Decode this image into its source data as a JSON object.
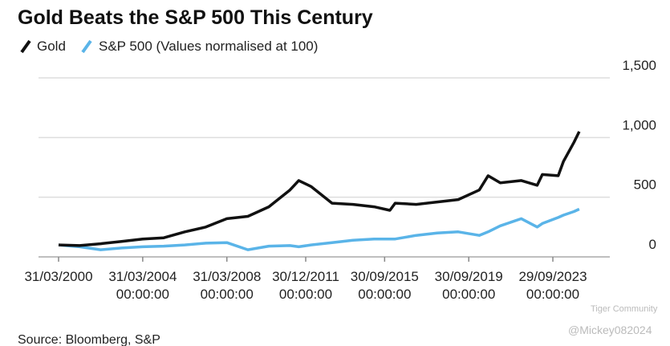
{
  "chart_data": {
    "type": "line",
    "title": "Gold Beats the S&P 500 This Century",
    "x": [
      "31/03/2000",
      "31/03/2001",
      "31/03/2002",
      "31/03/2003",
      "31/03/2004",
      "31/03/2005",
      "31/03/2006",
      "31/03/2007",
      "31/03/2008",
      "31/03/2009",
      "31/03/2010",
      "31/03/2011",
      "31/08/2011",
      "31/03/2012",
      "31/03/2013",
      "31/03/2014",
      "31/03/2015",
      "31/12/2015",
      "31/03/2016",
      "31/03/2017",
      "31/03/2018",
      "31/03/2019",
      "31/03/2020",
      "31/08/2020",
      "31/03/2021",
      "31/03/2022",
      "31/12/2022",
      "31/03/2023",
      "31/12/2023",
      "31/03/2024",
      "30/09/2024",
      "31/12/2024"
    ],
    "series": [
      {
        "name": "Gold",
        "color": "#111111",
        "values": [
          100,
          95,
          110,
          130,
          150,
          160,
          210,
          250,
          320,
          340,
          420,
          560,
          640,
          590,
          450,
          440,
          420,
          390,
          450,
          440,
          460,
          480,
          560,
          680,
          620,
          640,
          600,
          690,
          680,
          800,
          960,
          1050
        ]
      },
      {
        "name": "S&P 500 (Values normalised at 100)",
        "color": "#5ab4e8",
        "values": [
          100,
          85,
          60,
          75,
          85,
          90,
          100,
          115,
          120,
          60,
          90,
          95,
          85,
          100,
          120,
          140,
          150,
          150,
          150,
          180,
          200,
          210,
          180,
          210,
          260,
          320,
          250,
          280,
          330,
          350,
          380,
          400
        ]
      }
    ],
    "ylim": [
      0,
      1500
    ],
    "yticks": [
      0,
      500,
      {
        "value": 1000,
        "label": "1,000"
      },
      {
        "value": 1500,
        "label": "1,500"
      }
    ],
    "xticks": [
      {
        "value": "31/03/2000",
        "label": "31/03/2000"
      },
      {
        "value": "31/03/2004",
        "label": "31/03/2004\n00:00:00"
      },
      {
        "value": "31/03/2008",
        "label": "31/03/2008\n00:00:00"
      },
      {
        "value": "30/12/2011",
        "label": "30/12/2011\n00:00:00"
      },
      {
        "value": "30/09/2015",
        "label": "30/09/2015\n00:00:00"
      },
      {
        "value": "30/09/2019",
        "label": "30/09/2019\n00:00:00"
      },
      {
        "value": "29/09/2023",
        "label": "29/09/2023\n00:00:00"
      }
    ],
    "grid": true,
    "source": "Source: Bloomberg, S&P",
    "watermarks": [
      "Tiger Community",
      "@Mickey082024"
    ]
  }
}
